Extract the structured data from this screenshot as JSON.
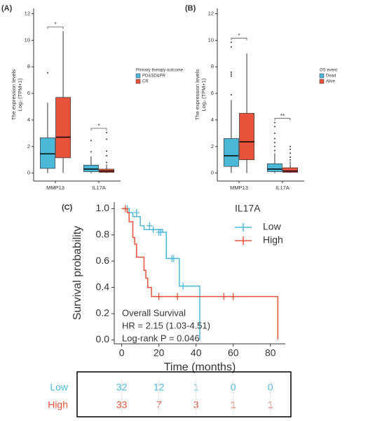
{
  "chart_data": [
    {
      "type": "box",
      "label": "(A)",
      "ylabel": [
        "The expression levels",
        "Log₂ (TPM+1)"
      ],
      "categories": [
        "MMP13",
        "IL17A"
      ],
      "ylim": [
        -0.6,
        12.4
      ],
      "yticks": [
        0,
        2,
        4,
        6,
        8,
        10,
        12
      ],
      "legend_title": "Primary therapy outcome",
      "significance": [
        "*",
        "*"
      ],
      "series": [
        {
          "name": "PD&SD&PR",
          "color": "#4cb8d8",
          "boxes": [
            {
              "min": 0,
              "q1": 0.35,
              "median": 1.45,
              "q3": 2.65,
              "max": 5.3,
              "outliers": [
                7.55
              ]
            },
            {
              "min": 0,
              "q1": 0.1,
              "median": 0.3,
              "q3": 0.6,
              "max": 1.25,
              "outliers": [
                1.6,
                2.45
              ]
            }
          ]
        },
        {
          "name": "CR",
          "color": "#e8523a",
          "boxes": [
            {
              "min": 0,
              "q1": 1.15,
              "median": 2.7,
              "q3": 5.7,
              "max": 10.7,
              "outliers": []
            },
            {
              "min": 0,
              "q1": 0.05,
              "median": 0.15,
              "q3": 0.3,
              "max": 0.65,
              "outliers": [
                0.8,
                1.3,
                1.65,
                2.55,
                3.05
              ]
            }
          ]
        }
      ]
    },
    {
      "type": "box",
      "label": "(B)",
      "ylabel": [
        "The expression levels",
        "Log₂ (TPM+1)"
      ],
      "categories": [
        "MMP13",
        "IL17A"
      ],
      "ylim": [
        -0.6,
        12.4
      ],
      "yticks": [
        0,
        2,
        4,
        6,
        8,
        10,
        12
      ],
      "legend_title": "OS event",
      "significance": [
        "*",
        "**"
      ],
      "series": [
        {
          "name": "Dead",
          "color": "#4cb8d8",
          "boxes": [
            {
              "min": 0,
              "q1": 0.5,
              "median": 1.3,
              "q3": 2.6,
              "max": 5.5,
              "outliers": [
                5.9,
                7.3,
                7.45,
                7.6,
                9.5,
                9.85
              ]
            },
            {
              "min": 0,
              "q1": 0.1,
              "median": 0.3,
              "q3": 0.7,
              "max": 1.5,
              "outliers": [
                1.7,
                2.0,
                2.3,
                2.6,
                3.0,
                3.5,
                3.8
              ]
            }
          ]
        },
        {
          "name": "Alive",
          "color": "#e8523a",
          "boxes": [
            {
              "min": 0,
              "q1": 1.0,
              "median": 2.35,
              "q3": 4.5,
              "max": 9.0,
              "outliers": []
            },
            {
              "min": 0,
              "q1": 0.05,
              "median": 0.15,
              "q3": 0.4,
              "max": 0.9,
              "outliers": [
                1.0,
                1.2,
                1.5,
                1.8,
                2.0
              ]
            }
          ]
        }
      ]
    },
    {
      "type": "survival",
      "label": "(C)",
      "xlabel": "Time (months)",
      "ylabel": "Survival probability",
      "xlim": [
        -4,
        88
      ],
      "xticks": [
        0,
        20,
        40,
        60,
        80
      ],
      "ylim": [
        -0.03,
        1.05
      ],
      "yticks": [
        {
          "value": 0,
          "label": "0.0"
        },
        0.2,
        0.4,
        0.6,
        0.8,
        {
          "value": 1,
          "label": "1.0"
        }
      ],
      "legend_title": "IL17A",
      "annotations": [
        "Overall Survival",
        "HR = 2.15 (1.03-4.51)",
        "Log-rank P = 0.046"
      ],
      "series": [
        {
          "name": "Low",
          "color": "#4cb8d8",
          "x": [
            0,
            4,
            6,
            10,
            12,
            22,
            24,
            31,
            42
          ],
          "values": [
            1,
            0.97,
            0.94,
            0.87,
            0.84,
            0.82,
            0.62,
            0.41,
            0
          ],
          "censor_x": [
            3,
            8,
            15,
            17,
            20,
            21,
            27,
            28,
            33
          ],
          "censor_y": [
            1,
            0.97,
            0.87,
            0.84,
            0.82,
            0.82,
            0.62,
            0.62,
            0.41
          ],
          "at_risk": [
            32,
            12,
            1,
            0,
            0
          ]
        },
        {
          "name": "High",
          "color": "#e8523a",
          "x": [
            0,
            3,
            4,
            6,
            7,
            8,
            12,
            13,
            14,
            16,
            84
          ],
          "values": [
            1,
            0.97,
            0.9,
            0.78,
            0.73,
            0.63,
            0.53,
            0.47,
            0.4,
            0.33,
            0
          ],
          "censor_x": [
            2,
            20,
            30,
            55,
            60
          ],
          "censor_y": [
            1,
            0.33,
            0.33,
            0.33,
            0.33
          ],
          "at_risk": [
            33,
            7,
            3,
            1,
            1
          ]
        }
      ]
    }
  ]
}
